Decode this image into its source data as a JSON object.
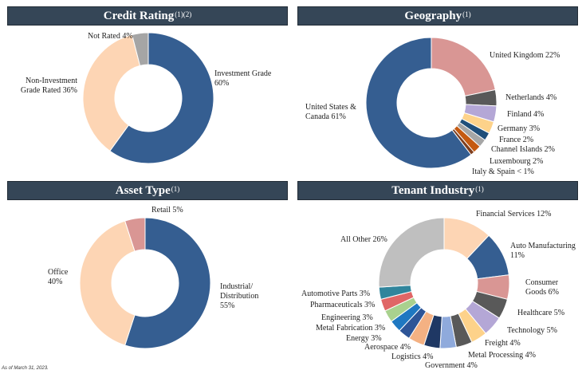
{
  "panels": [
    {
      "title": "Credit Rating",
      "superscript": "(1)(2)"
    },
    {
      "title": "Geography",
      "superscript": "(1)"
    },
    {
      "title": "Asset Type",
      "superscript": "(1)"
    },
    {
      "title": "Tenant Industry",
      "superscript": "(1)"
    }
  ],
  "footnote": "As of March 31, 2023.",
  "chart_data": [
    {
      "type": "pie",
      "title": "Credit Rating",
      "donut": true,
      "slices": [
        {
          "label": "Investment Grade 60%",
          "value": 60,
          "color": "#355e91"
        },
        {
          "label": "Non-Investment Grade Rated 36%",
          "value": 36,
          "color": "#fdd5b4"
        },
        {
          "label": "Not Rated 4%",
          "value": 4,
          "color": "#a5a5a5"
        }
      ]
    },
    {
      "type": "pie",
      "title": "Geography",
      "donut": true,
      "slices": [
        {
          "label": "United Kingdom 22%",
          "value": 22,
          "color": "#d99694"
        },
        {
          "label": "Netherlands 4%",
          "value": 4,
          "color": "#595959"
        },
        {
          "label": "Finland 4%",
          "value": 4,
          "color": "#b4a7d6"
        },
        {
          "label": "Germany 3%",
          "value": 3,
          "color": "#fdd28a"
        },
        {
          "label": "France 2%",
          "value": 2,
          "color": "#1f4e79"
        },
        {
          "label": "Channel Islands 2%",
          "value": 2,
          "color": "#a6a6a6"
        },
        {
          "label": "Luxembourg 2%",
          "value": 2,
          "color": "#c55a11"
        },
        {
          "label": "Italy & Spain < 1%",
          "value": 1,
          "color": "#7f3f1f"
        },
        {
          "label": "United States & Canada 61%",
          "value": 61,
          "color": "#355e91"
        }
      ]
    },
    {
      "type": "pie",
      "title": "Asset Type",
      "donut": true,
      "slices": [
        {
          "label": "Industrial/ Distribution 55%",
          "value": 55,
          "color": "#355e91"
        },
        {
          "label": "Office 40%",
          "value": 40,
          "color": "#fdd5b4"
        },
        {
          "label": "Retail 5%",
          "value": 5,
          "color": "#d99694"
        }
      ]
    },
    {
      "type": "pie",
      "title": "Tenant Industry",
      "donut": true,
      "slices": [
        {
          "label": "Financial Services 12%",
          "value": 12,
          "color": "#fdd5b4"
        },
        {
          "label": "Auto Manufacturing 11%",
          "value": 11,
          "color": "#355e91"
        },
        {
          "label": "Consumer Goods 6%",
          "value": 6,
          "color": "#d99694"
        },
        {
          "label": "Healthcare 5%",
          "value": 5,
          "color": "#595959"
        },
        {
          "label": "Technology 5%",
          "value": 5,
          "color": "#b4a7d6"
        },
        {
          "label": "Freight 4%",
          "value": 4,
          "color": "#fdd28a"
        },
        {
          "label": "Metal Processing 4%",
          "value": 4,
          "color": "#595959"
        },
        {
          "label": "Government 4%",
          "value": 4,
          "color": "#8faadc"
        },
        {
          "label": "Logistics 4%",
          "value": 4,
          "color": "#1f3864"
        },
        {
          "label": "Aerospace 4%",
          "value": 4,
          "color": "#f4b183"
        },
        {
          "label": "Energy 3%",
          "value": 3,
          "color": "#2e5597"
        },
        {
          "label": "Metal Fabrication 3%",
          "value": 3,
          "color": "#1f78c1"
        },
        {
          "label": "Engineering 3%",
          "value": 3,
          "color": "#a9d18e"
        },
        {
          "label": "Pharmaceuticals 3%",
          "value": 3,
          "color": "#e06666"
        },
        {
          "label": "Automotive Parts 3%",
          "value": 3,
          "color": "#31859c"
        },
        {
          "label": "All Other 26%",
          "value": 26,
          "color": "#bfbfbf"
        }
      ]
    }
  ]
}
